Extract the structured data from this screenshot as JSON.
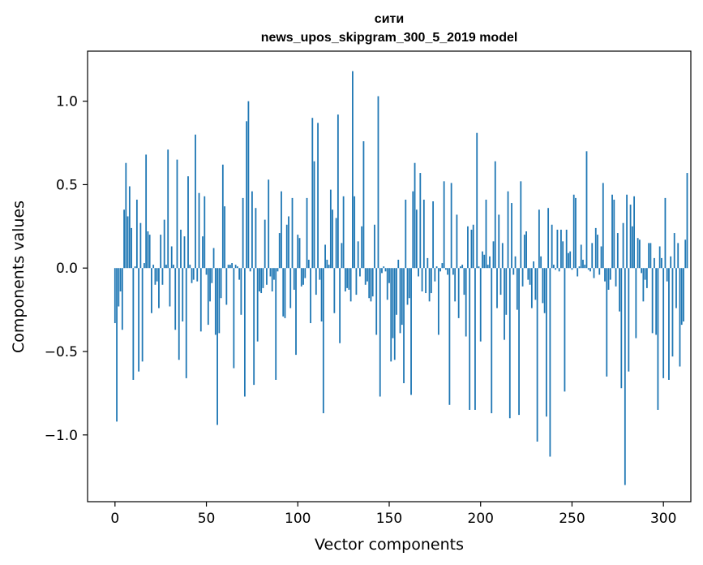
{
  "chart_data": {
    "type": "bar",
    "title": "сити",
    "subtitle": "news_upos_skipgram_300_5_2019 model",
    "xlabel": "Vector components",
    "ylabel": "Components values",
    "xlim": [
      -15,
      315
    ],
    "ylim": [
      -1.4,
      1.3
    ],
    "xticks": [
      0,
      50,
      100,
      150,
      200,
      250,
      300
    ],
    "yticks": [
      -1.0,
      -0.5,
      0.0,
      0.5,
      1.0
    ],
    "xtick_labels": [
      "0",
      "50",
      "100",
      "150",
      "200",
      "250",
      "300"
    ],
    "ytick_labels": [
      "−1.0",
      "−0.5",
      "0.0",
      "0.5",
      "1.0"
    ],
    "bar_color": "#1f77b4",
    "values": [
      -0.33,
      -0.92,
      -0.23,
      -0.14,
      -0.37,
      0.35,
      0.63,
      0.31,
      0.49,
      0.24,
      -0.67,
      0.01,
      0.41,
      -0.62,
      0.27,
      -0.56,
      0.03,
      0.68,
      0.22,
      0.2,
      -0.27,
      0.02,
      -0.1,
      -0.08,
      -0.24,
      0.2,
      -0.1,
      0.29,
      0.02,
      0.71,
      -0.23,
      0.13,
      0.02,
      -0.37,
      0.65,
      -0.55,
      0.23,
      -0.32,
      0.19,
      -0.66,
      0.55,
      0.02,
      -0.09,
      -0.07,
      0.8,
      -0.08,
      0.45,
      -0.38,
      0.19,
      0.43,
      -0.04,
      -0.34,
      -0.2,
      -0.09,
      0.12,
      -0.4,
      -0.94,
      -0.39,
      -0.18,
      0.62,
      0.37,
      -0.22,
      0.02,
      0.02,
      0.03,
      -0.6,
      0.02,
      0.01,
      -0.07,
      -0.28,
      0.42,
      -0.77,
      0.88,
      1.0,
      -0.02,
      0.46,
      -0.7,
      0.36,
      -0.44,
      -0.14,
      -0.15,
      -0.12,
      0.29,
      -0.1,
      0.53,
      -0.05,
      -0.14,
      -0.07,
      -0.67,
      -0.02,
      0.21,
      0.46,
      -0.29,
      -0.3,
      0.26,
      0.31,
      -0.24,
      0.42,
      -0.13,
      -0.52,
      0.2,
      0.18,
      -0.11,
      -0.1,
      -0.06,
      0.42,
      0.05,
      -0.33,
      0.9,
      0.64,
      -0.16,
      0.87,
      -0.07,
      -0.32,
      -0.87,
      0.14,
      0.05,
      0.02,
      0.47,
      0.35,
      -0.27,
      0.3,
      0.92,
      -0.45,
      0.15,
      0.43,
      -0.14,
      -0.12,
      -0.13,
      -0.2,
      1.18,
      0.43,
      -0.16,
      0.16,
      -0.05,
      0.25,
      0.76,
      -0.1,
      -0.08,
      -0.18,
      -0.2,
      -0.17,
      0.26,
      -0.4,
      1.03,
      -0.77,
      -0.03,
      0.01,
      -0.02,
      -0.19,
      -0.09,
      -0.56,
      -0.42,
      -0.55,
      -0.28,
      0.05,
      -0.39,
      -0.34,
      -0.69,
      0.41,
      -0.22,
      -0.18,
      -0.76,
      0.46,
      0.63,
      0.35,
      -0.05,
      0.57,
      -0.14,
      0.41,
      -0.15,
      0.06,
      -0.2,
      -0.15,
      0.4,
      -0.08,
      0.01,
      -0.4,
      -0.02,
      0.03,
      0.52,
      -0.01,
      -0.04,
      -0.82,
      0.51,
      -0.04,
      -0.2,
      0.32,
      -0.3,
      0.01,
      0.02,
      -0.16,
      -0.41,
      0.25,
      -0.85,
      0.23,
      0.26,
      -0.85,
      0.81,
      0.01,
      -0.44,
      0.1,
      0.08,
      0.41,
      0.02,
      0.07,
      -0.87,
      0.16,
      0.64,
      -0.24,
      0.32,
      -0.16,
      0.15,
      -0.43,
      -0.28,
      0.46,
      -0.9,
      0.39,
      -0.04,
      0.07,
      -0.25,
      -0.88,
      0.52,
      -0.11,
      0.2,
      0.22,
      -0.07,
      -0.1,
      -0.24,
      0.04,
      -0.19,
      -1.04,
      0.35,
      0.07,
      -0.21,
      -0.27,
      -0.89,
      0.36,
      -1.13,
      0.26,
      0.02,
      -0.01,
      0.23,
      -0.02,
      0.23,
      0.16,
      -0.74,
      0.23,
      0.09,
      0.1,
      -0.01,
      0.44,
      0.42,
      -0.05,
      0.01,
      0.14,
      0.05,
      0.02,
      0.7,
      -0.01,
      -0.02,
      0.15,
      -0.06,
      0.24,
      0.2,
      -0.04,
      0.13,
      0.51,
      -0.08,
      -0.65,
      -0.13,
      -0.07,
      0.44,
      0.41,
      -0.11,
      0.21,
      -0.26,
      -0.72,
      0.27,
      -1.3,
      0.44,
      -0.62,
      0.38,
      0.25,
      0.43,
      -0.42,
      0.18,
      0.17,
      -0.03,
      -0.2,
      -0.07,
      -0.12,
      0.15,
      0.15,
      -0.39,
      0.06,
      -0.4,
      -0.85,
      0.13,
      0.06,
      -0.66,
      0.42,
      -0.08,
      -0.67,
      0.07,
      -0.53,
      0.21,
      -0.24,
      0.15,
      -0.59,
      -0.34,
      -0.32,
      0.17,
      0.57
    ]
  }
}
